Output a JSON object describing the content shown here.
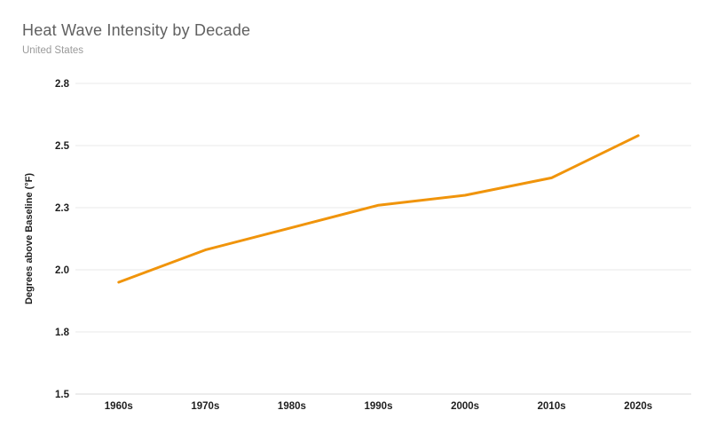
{
  "header": {
    "title": "Heat Wave Intensity by Decade",
    "subtitle": "United States"
  },
  "chart_data": {
    "type": "line",
    "title": "Heat Wave Intensity by Decade",
    "subtitle": "United States",
    "categories": [
      "1960s",
      "1970s",
      "1980s",
      "1990s",
      "2000s",
      "2010s",
      "2020s"
    ],
    "values": [
      1.95,
      2.08,
      2.17,
      2.26,
      2.3,
      2.37,
      2.54
    ],
    "series_name": "Heat wave intensity",
    "xlabel": "",
    "ylabel": "Degrees above Baseline (°F)",
    "y_axis": {
      "min": 1.5,
      "max": 2.75,
      "tick_values": [
        1.5,
        1.75,
        2.0,
        2.25,
        2.5,
        2.75
      ],
      "tick_labels": [
        "1.5",
        "1.8",
        "2.0",
        "2.3",
        "2.5",
        "2.8"
      ]
    },
    "grid": "horizontal",
    "legend": "none"
  },
  "colors": {
    "line": "#F0940B",
    "title_text": "#616161",
    "subtitle_text": "#9A9A9A",
    "axis_text": "#1F1F1F",
    "gridline": "#E8E8E8",
    "axis_line": "#D9D9D9",
    "background": "#FFFFFF"
  }
}
